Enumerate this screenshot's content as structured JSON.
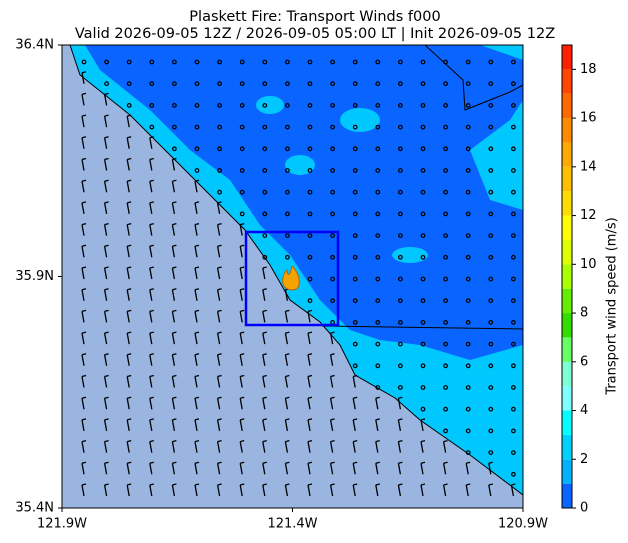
{
  "chart_data": {
    "type": "map",
    "title": "Plaskett Fire: Transport Winds f000",
    "subtitle": "Valid 2026-09-05 12Z / 2026-09-05 05:00 LT | Init 2026-09-05 12Z",
    "xlim": [
      -121.9,
      -120.9
    ],
    "ylim": [
      35.4,
      36.4
    ],
    "xticks": [
      {
        "value": -121.9,
        "label": "121.9W"
      },
      {
        "value": -121.4,
        "label": "121.4W"
      },
      {
        "value": -120.9,
        "label": "120.9W"
      }
    ],
    "yticks": [
      {
        "value": 35.4,
        "label": "35.4N"
      },
      {
        "value": 35.9,
        "label": "35.9N"
      },
      {
        "value": 36.4,
        "label": "36.4N"
      }
    ],
    "colorbar": {
      "label": "Transport wind speed (m/s)",
      "levels": [
        0,
        1,
        2,
        3,
        4,
        5,
        6,
        7,
        8,
        9,
        10,
        11,
        12,
        13,
        14,
        15,
        16,
        17,
        18,
        19
      ],
      "colors": [
        "#0a64ff",
        "#00b4ff",
        "#00d2ff",
        "#00ffff",
        "#80ffff",
        "#7fffd4",
        "#66ff66",
        "#33dd00",
        "#66ee00",
        "#aaff00",
        "#ddff00",
        "#ffff00",
        "#ffdd00",
        "#ffc000",
        "#ffaa00",
        "#ff8c00",
        "#ff6a00",
        "#ff4500",
        "#ff2000"
      ],
      "ticks": [
        0,
        2,
        4,
        6,
        8,
        10,
        12,
        14,
        16,
        18
      ]
    }
  }
}
